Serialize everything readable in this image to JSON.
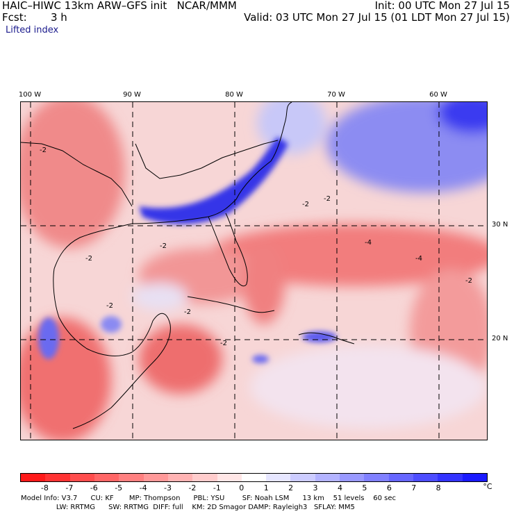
{
  "header": {
    "model_line": "HAIC–HIWC 13km ARW–GFS init   NCAR/MMM",
    "fcst_label": "Fcst:",
    "fcst_value": "3 h",
    "init": "Init: 00 UTC Mon 27 Jul 15",
    "valid": "Valid: 03 UTC Mon 27 Jul 15 (01 LDT Mon 27 Jul 15)",
    "field": "Lifted index"
  },
  "map": {
    "lon_labels": [
      "100 W",
      "90 W",
      "80 W",
      "70 W",
      "60 W"
    ],
    "lat_labels": [
      "30 N",
      "20 N"
    ],
    "contour_labels": [
      "-2",
      "-2",
      "-2",
      "-2",
      "-2",
      "-2",
      "-2",
      "-2",
      "-4",
      "-4",
      "-2"
    ]
  },
  "colorbar": {
    "labels": [
      "-8",
      "-7",
      "-6",
      "-5",
      "-4",
      "-3",
      "-2",
      "-1",
      "0",
      "1",
      "2",
      "3",
      "4",
      "5",
      "6",
      "7",
      "8"
    ],
    "unit": "°C",
    "colors": [
      "#ff1a1a",
      "#ff3333",
      "#ff4d4d",
      "#ff6666",
      "#ff8080",
      "#ff9999",
      "#ffb3b3",
      "#ffcccc",
      "#ffe6e6",
      "#ffffff",
      "#e6e6ff",
      "#ccccff",
      "#b3b3ff",
      "#9999ff",
      "#8080ff",
      "#6666ff",
      "#4d4dff",
      "#3333ff",
      "#1a1aff"
    ]
  },
  "info": {
    "line1": "Model Info: V3.7      CU: KF       MP: Thompson      PBL: YSU        SF: Noah LSM      13 km    51 levels    60 sec",
    "line2": "                LW: RRTMG      SW: RRTMG  DIFF: full    KM: 2D Smagor DAMP: Rayleigh3   SFLAY: MM5"
  }
}
